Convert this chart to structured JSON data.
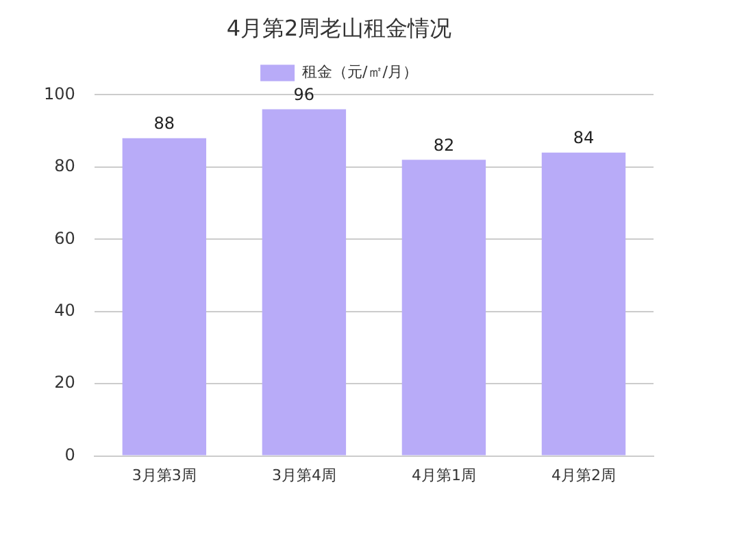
{
  "chart_data": {
    "type": "bar",
    "title": "4月第2周老山租金情况",
    "categories": [
      "3月第3周",
      "3月第4周",
      "4月第1周",
      "4月第2周"
    ],
    "series": [
      {
        "name": "租金（元/㎡/月）",
        "color": "#b8abf8",
        "values": [
          88,
          96,
          82,
          84
        ]
      }
    ],
    "ylim": [
      0,
      100
    ],
    "yticks": [
      0,
      20,
      40,
      60,
      80,
      100
    ],
    "grid": "y",
    "legend": "top",
    "data_labels": true
  }
}
